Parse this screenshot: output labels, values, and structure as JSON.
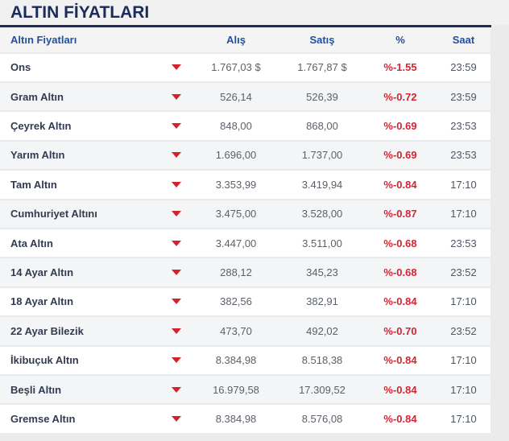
{
  "title": "ALTIN FİYATLARI",
  "table": {
    "header": {
      "name": "Altın Fiyatları",
      "buy": "Alış",
      "sell": "Satış",
      "change": "%",
      "time": "Saat"
    },
    "rows": [
      {
        "name": "Ons",
        "trend": "down",
        "buy": "1.767,03 $",
        "sell": "1.767,87 $",
        "change": "%-1.55",
        "time": "23:59"
      },
      {
        "name": "Gram Altın",
        "trend": "down",
        "buy": "526,14",
        "sell": "526,39",
        "change": "%-0.72",
        "time": "23:59"
      },
      {
        "name": "Çeyrek Altın",
        "trend": "down",
        "buy": "848,00",
        "sell": "868,00",
        "change": "%-0.69",
        "time": "23:53"
      },
      {
        "name": "Yarım Altın",
        "trend": "down",
        "buy": "1.696,00",
        "sell": "1.737,00",
        "change": "%-0.69",
        "time": "23:53"
      },
      {
        "name": "Tam Altın",
        "trend": "down",
        "buy": "3.353,99",
        "sell": "3.419,94",
        "change": "%-0.84",
        "time": "17:10"
      },
      {
        "name": "Cumhuriyet Altını",
        "trend": "down",
        "buy": "3.475,00",
        "sell": "3.528,00",
        "change": "%-0.87",
        "time": "17:10"
      },
      {
        "name": "Ata Altın",
        "trend": "down",
        "buy": "3.447,00",
        "sell": "3.511,00",
        "change": "%-0.68",
        "time": "23:53"
      },
      {
        "name": "14 Ayar Altın",
        "trend": "down",
        "buy": "288,12",
        "sell": "345,23",
        "change": "%-0.68",
        "time": "23:52"
      },
      {
        "name": "18 Ayar Altın",
        "trend": "down",
        "buy": "382,56",
        "sell": "382,91",
        "change": "%-0.84",
        "time": "17:10"
      },
      {
        "name": "22 Ayar Bilezik",
        "trend": "down",
        "buy": "473,70",
        "sell": "492,02",
        "change": "%-0.70",
        "time": "23:52"
      },
      {
        "name": "İkibuçuk Altın",
        "trend": "down",
        "buy": "8.384,98",
        "sell": "8.518,38",
        "change": "%-0.84",
        "time": "17:10"
      },
      {
        "name": "Beşli Altın",
        "trend": "down",
        "buy": "16.979,58",
        "sell": "17.309,52",
        "change": "%-0.84",
        "time": "17:10"
      },
      {
        "name": "Gremse Altın",
        "trend": "down",
        "buy": "8.384,98",
        "sell": "8.576,08",
        "change": "%-0.84",
        "time": "17:10"
      }
    ]
  },
  "colors": {
    "navy": "#1f2b5b",
    "header_blue": "#2150a0",
    "negative_red": "#d32533",
    "alt_row": "#f4f5f6"
  }
}
